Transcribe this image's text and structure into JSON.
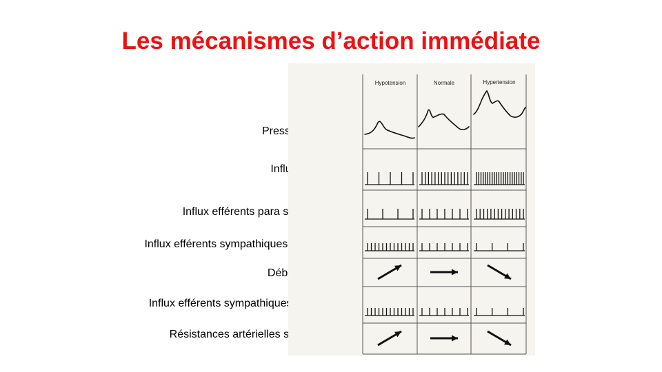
{
  "title": "Les mécanismes d’action immédiate",
  "columns": [
    "Hypotension",
    "Normale",
    "Hypertension"
  ],
  "rows": [
    "Pression artérielle",
    "Influx afférents",
    "Influx efférents para sympathiques",
    "Influx efférents sympathiques cardiaques",
    "Débit cardiaque",
    "Influx efférents sympathiques vasculaires",
    "Résistances artérielles systémiques"
  ],
  "spike_counts": {
    "afferents": [
      5,
      15,
      22
    ],
    "parasympathiques": [
      4,
      7,
      14
    ],
    "sympathiques_cardiaques": [
      13,
      7,
      4
    ],
    "sympathiques_vasculaires": [
      13,
      7,
      4
    ]
  },
  "arrows": {
    "debit_cardiaque": [
      "up",
      "flat",
      "down"
    ],
    "resistances": [
      "up",
      "flat",
      "down"
    ]
  }
}
